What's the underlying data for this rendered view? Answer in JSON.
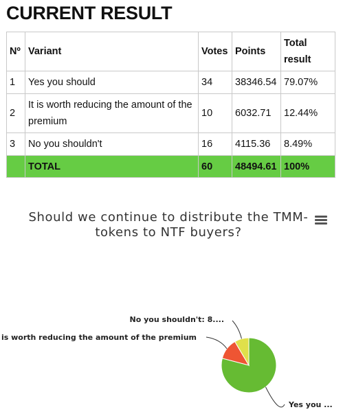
{
  "page": {
    "title": "CURRENT RESULT"
  },
  "table": {
    "headers": [
      "Nº",
      "Variant",
      "Votes",
      "Points",
      "Total result"
    ],
    "rows": [
      {
        "num": "1",
        "variant": "Yes you should",
        "votes": "34",
        "points": "38346.54",
        "result": "79.07%"
      },
      {
        "num": "2",
        "variant": "It is worth reducing the amount of the premium",
        "votes": "10",
        "points": "6032.71",
        "result": "12.44%"
      },
      {
        "num": "3",
        "variant": "No you shouldn't",
        "votes": "16",
        "points": "4115.36",
        "result": "8.49%"
      }
    ],
    "total": {
      "num": "",
      "label": "TOTAL",
      "votes": "60",
      "points": "48494.61",
      "result": "100%"
    }
  },
  "chart": {
    "title": "Should we continue to distribute the TMM-tokens to NTF buyers?",
    "menu_icon": "hamburger-menu-icon"
  },
  "chart_data": {
    "type": "pie",
    "title": "Should we continue to distribute the TMM-tokens to NTF buyers?",
    "slices": [
      {
        "name": "Yes you should",
        "value": 79.07,
        "label": "Yes you ...",
        "color": "#66bb33"
      },
      {
        "name": "It is worth reducing the amount of the premium",
        "value": 12.44,
        "label": "It is worth reducing the amount of the premium",
        "color": "#ee5533"
      },
      {
        "name": "No you shouldn't",
        "value": 8.49,
        "label": "No you shouldn't: 8....",
        "color": "#e0e04a"
      }
    ]
  }
}
